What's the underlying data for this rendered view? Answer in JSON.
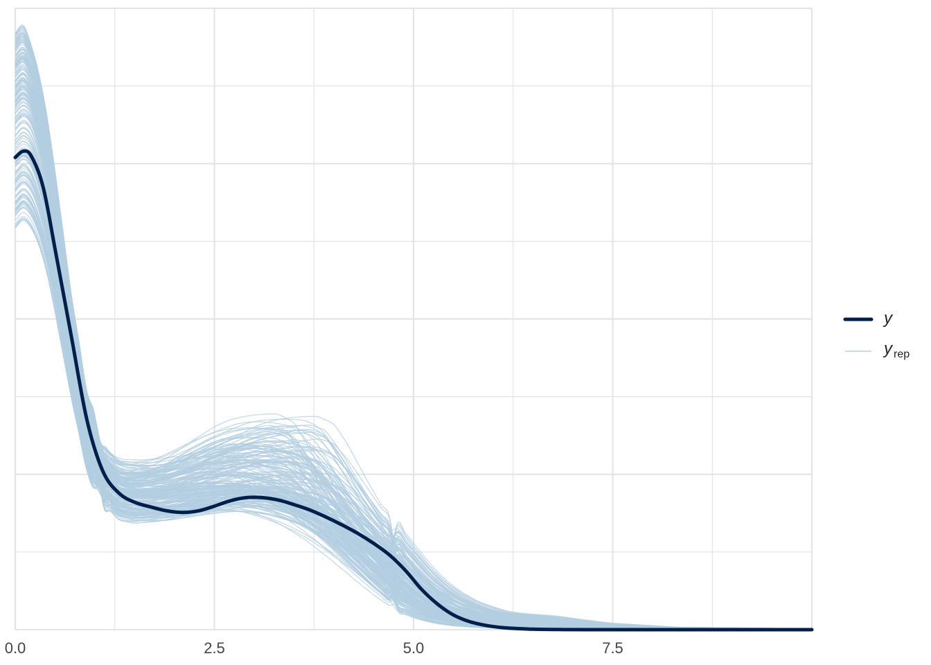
{
  "chart_data": {
    "type": "line",
    "subtype": "posterior predictive density overlay",
    "title": "",
    "xlabel": "",
    "ylabel": "",
    "xlim": [
      0,
      10
    ],
    "ylim": [
      0,
      0.4
    ],
    "grid": true,
    "y_tick_labels_shown": false,
    "legend_position": "right",
    "x_ticks": [
      {
        "value": 0.0,
        "label": "0.0"
      },
      {
        "value": 2.5,
        "label": "2.5"
      },
      {
        "value": 5.0,
        "label": "5.0"
      },
      {
        "value": 7.5,
        "label": "7.5"
      }
    ],
    "series": [
      {
        "name": "y",
        "role": "observed",
        "color": "#011f4b",
        "x": [
          0.0,
          0.1,
          0.2,
          0.35,
          0.5,
          0.7,
          0.9,
          1.1,
          1.3,
          1.5,
          1.7,
          1.9,
          2.1,
          2.3,
          2.5,
          2.7,
          2.9,
          3.1,
          3.3,
          3.5,
          3.7,
          3.9,
          4.1,
          4.3,
          4.5,
          4.7,
          4.9,
          5.1,
          5.3,
          5.5,
          5.7,
          5.9,
          6.1,
          6.3,
          6.5,
          6.8,
          7.2,
          8.0,
          10.0
        ],
        "y": [
          0.304,
          0.308,
          0.305,
          0.285,
          0.245,
          0.19,
          0.135,
          0.102,
          0.088,
          0.082,
          0.079,
          0.0765,
          0.0755,
          0.0765,
          0.0795,
          0.083,
          0.085,
          0.085,
          0.0835,
          0.0805,
          0.077,
          0.0725,
          0.0675,
          0.062,
          0.0555,
          0.048,
          0.038,
          0.026,
          0.0165,
          0.0095,
          0.0052,
          0.0028,
          0.0014,
          0.0007,
          0.0003,
          0.0001,
          0.0,
          0.0,
          0.0
        ]
      },
      {
        "name": "y_rep",
        "role": "replicated",
        "color": "#b3cde0",
        "count": 200,
        "x": [
          0.0,
          0.1,
          0.2,
          0.35,
          0.5,
          0.7,
          0.9,
          1.1,
          1.3,
          1.5,
          1.7,
          1.9,
          2.1,
          2.3,
          2.5,
          2.7,
          2.9,
          3.1,
          3.3,
          3.5,
          3.7,
          3.9,
          4.1,
          4.3,
          4.5,
          4.7,
          4.9,
          5.1,
          5.3,
          5.5,
          5.7,
          5.9,
          6.1,
          6.3,
          6.5,
          6.8,
          7.2,
          8.0,
          10.0
        ],
        "y": [
          0.33,
          0.335,
          0.33,
          0.305,
          0.26,
          0.19,
          0.13,
          0.101,
          0.09,
          0.087,
          0.087,
          0.088,
          0.09,
          0.092,
          0.0935,
          0.0945,
          0.095,
          0.094,
          0.0915,
          0.088,
          0.083,
          0.076,
          0.068,
          0.059,
          0.049,
          0.039,
          0.029,
          0.0205,
          0.0145,
          0.01,
          0.0072,
          0.0055,
          0.0045,
          0.0037,
          0.003,
          0.0022,
          0.0013,
          0.0005,
          0.0001
        ],
        "y_min": [
          0.24,
          0.245,
          0.24,
          0.225,
          0.19,
          0.14,
          0.095,
          0.074,
          0.064,
          0.062,
          0.063,
          0.064,
          0.066,
          0.068,
          0.07,
          0.071,
          0.0705,
          0.069,
          0.066,
          0.062,
          0.057,
          0.051,
          0.044,
          0.036,
          0.028,
          0.02,
          0.013,
          0.008,
          0.0045,
          0.0025,
          0.0013,
          0.0007,
          0.0004,
          0.0002,
          0.0001,
          0.0,
          0.0,
          0.0,
          0.0
        ],
        "y_max": [
          0.4,
          0.405,
          0.39,
          0.36,
          0.305,
          0.225,
          0.16,
          0.128,
          0.12,
          0.12,
          0.121,
          0.124,
          0.129,
          0.135,
          0.14,
          0.145,
          0.148,
          0.15,
          0.152,
          0.154,
          0.15,
          0.132,
          0.11,
          0.09,
          0.074,
          0.06,
          0.046,
          0.035,
          0.027,
          0.021,
          0.017,
          0.0135,
          0.012,
          0.0112,
          0.0105,
          0.008,
          0.005,
          0.002,
          0.0005
        ]
      }
    ],
    "legend": [
      {
        "series": "y",
        "label": "y",
        "subscript": ""
      },
      {
        "series": "y_rep",
        "label": "y",
        "subscript": "rep"
      }
    ]
  }
}
